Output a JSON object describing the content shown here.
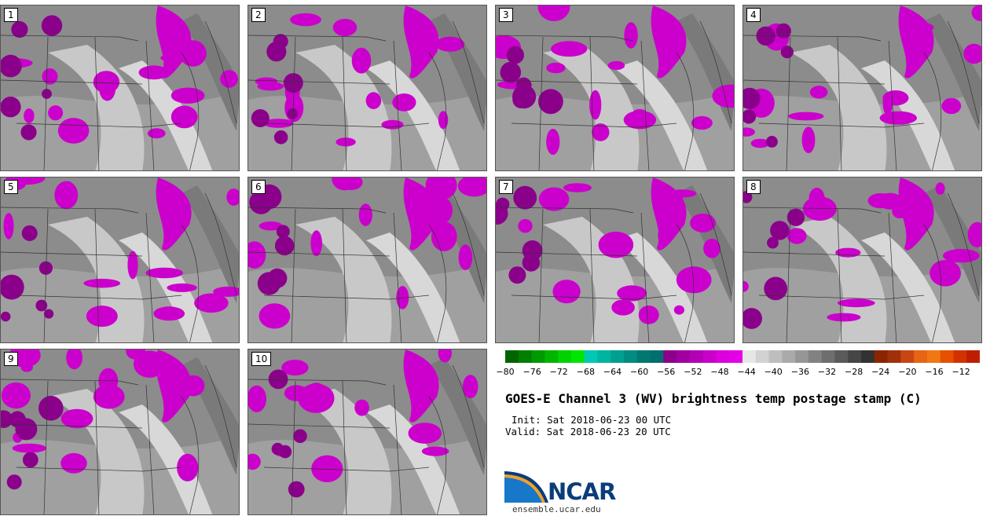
{
  "panels": [
    {
      "label": "1"
    },
    {
      "label": "2"
    },
    {
      "label": "3"
    },
    {
      "label": "4"
    },
    {
      "label": "5"
    },
    {
      "label": "6"
    },
    {
      "label": "7"
    },
    {
      "label": "8"
    },
    {
      "label": "9"
    },
    {
      "label": "10"
    }
  ],
  "colorbar": {
    "ticks": [
      "-80",
      "-76",
      "-72",
      "-68",
      "-64",
      "-60",
      "-56",
      "-52",
      "-48",
      "-44",
      "-40",
      "-36",
      "-32",
      "-28",
      "-24",
      "-20",
      "-16",
      "-12"
    ],
    "colors": [
      "#006400",
      "#007f00",
      "#009a00",
      "#00b400",
      "#00d200",
      "#00e600",
      "#00c8b4",
      "#00b4a0",
      "#00a090",
      "#008c80",
      "#007870",
      "#006e6e",
      "#8c008c",
      "#a000a0",
      "#b400b4",
      "#c800c8",
      "#dc00dc",
      "#e600e6",
      "#e6e6e6",
      "#d2d2d2",
      "#bebebe",
      "#aaaaaa",
      "#969696",
      "#828282",
      "#6e6e6e",
      "#5a5a5a",
      "#464646",
      "#323232",
      "#8b2500",
      "#a0300a",
      "#c84614",
      "#e66414",
      "#f07814",
      "#e65000",
      "#d23200",
      "#be1e00"
    ]
  },
  "title": "GOES-E Channel 3 (WV) brightness temp postage stamp (C)",
  "init": "Init: Sat 2018-06-23 00 UTC",
  "valid": "Valid: Sat 2018-06-23 20 UTC",
  "logo": {
    "text": "NCAR",
    "site": "ensemble.ucar.edu"
  }
}
